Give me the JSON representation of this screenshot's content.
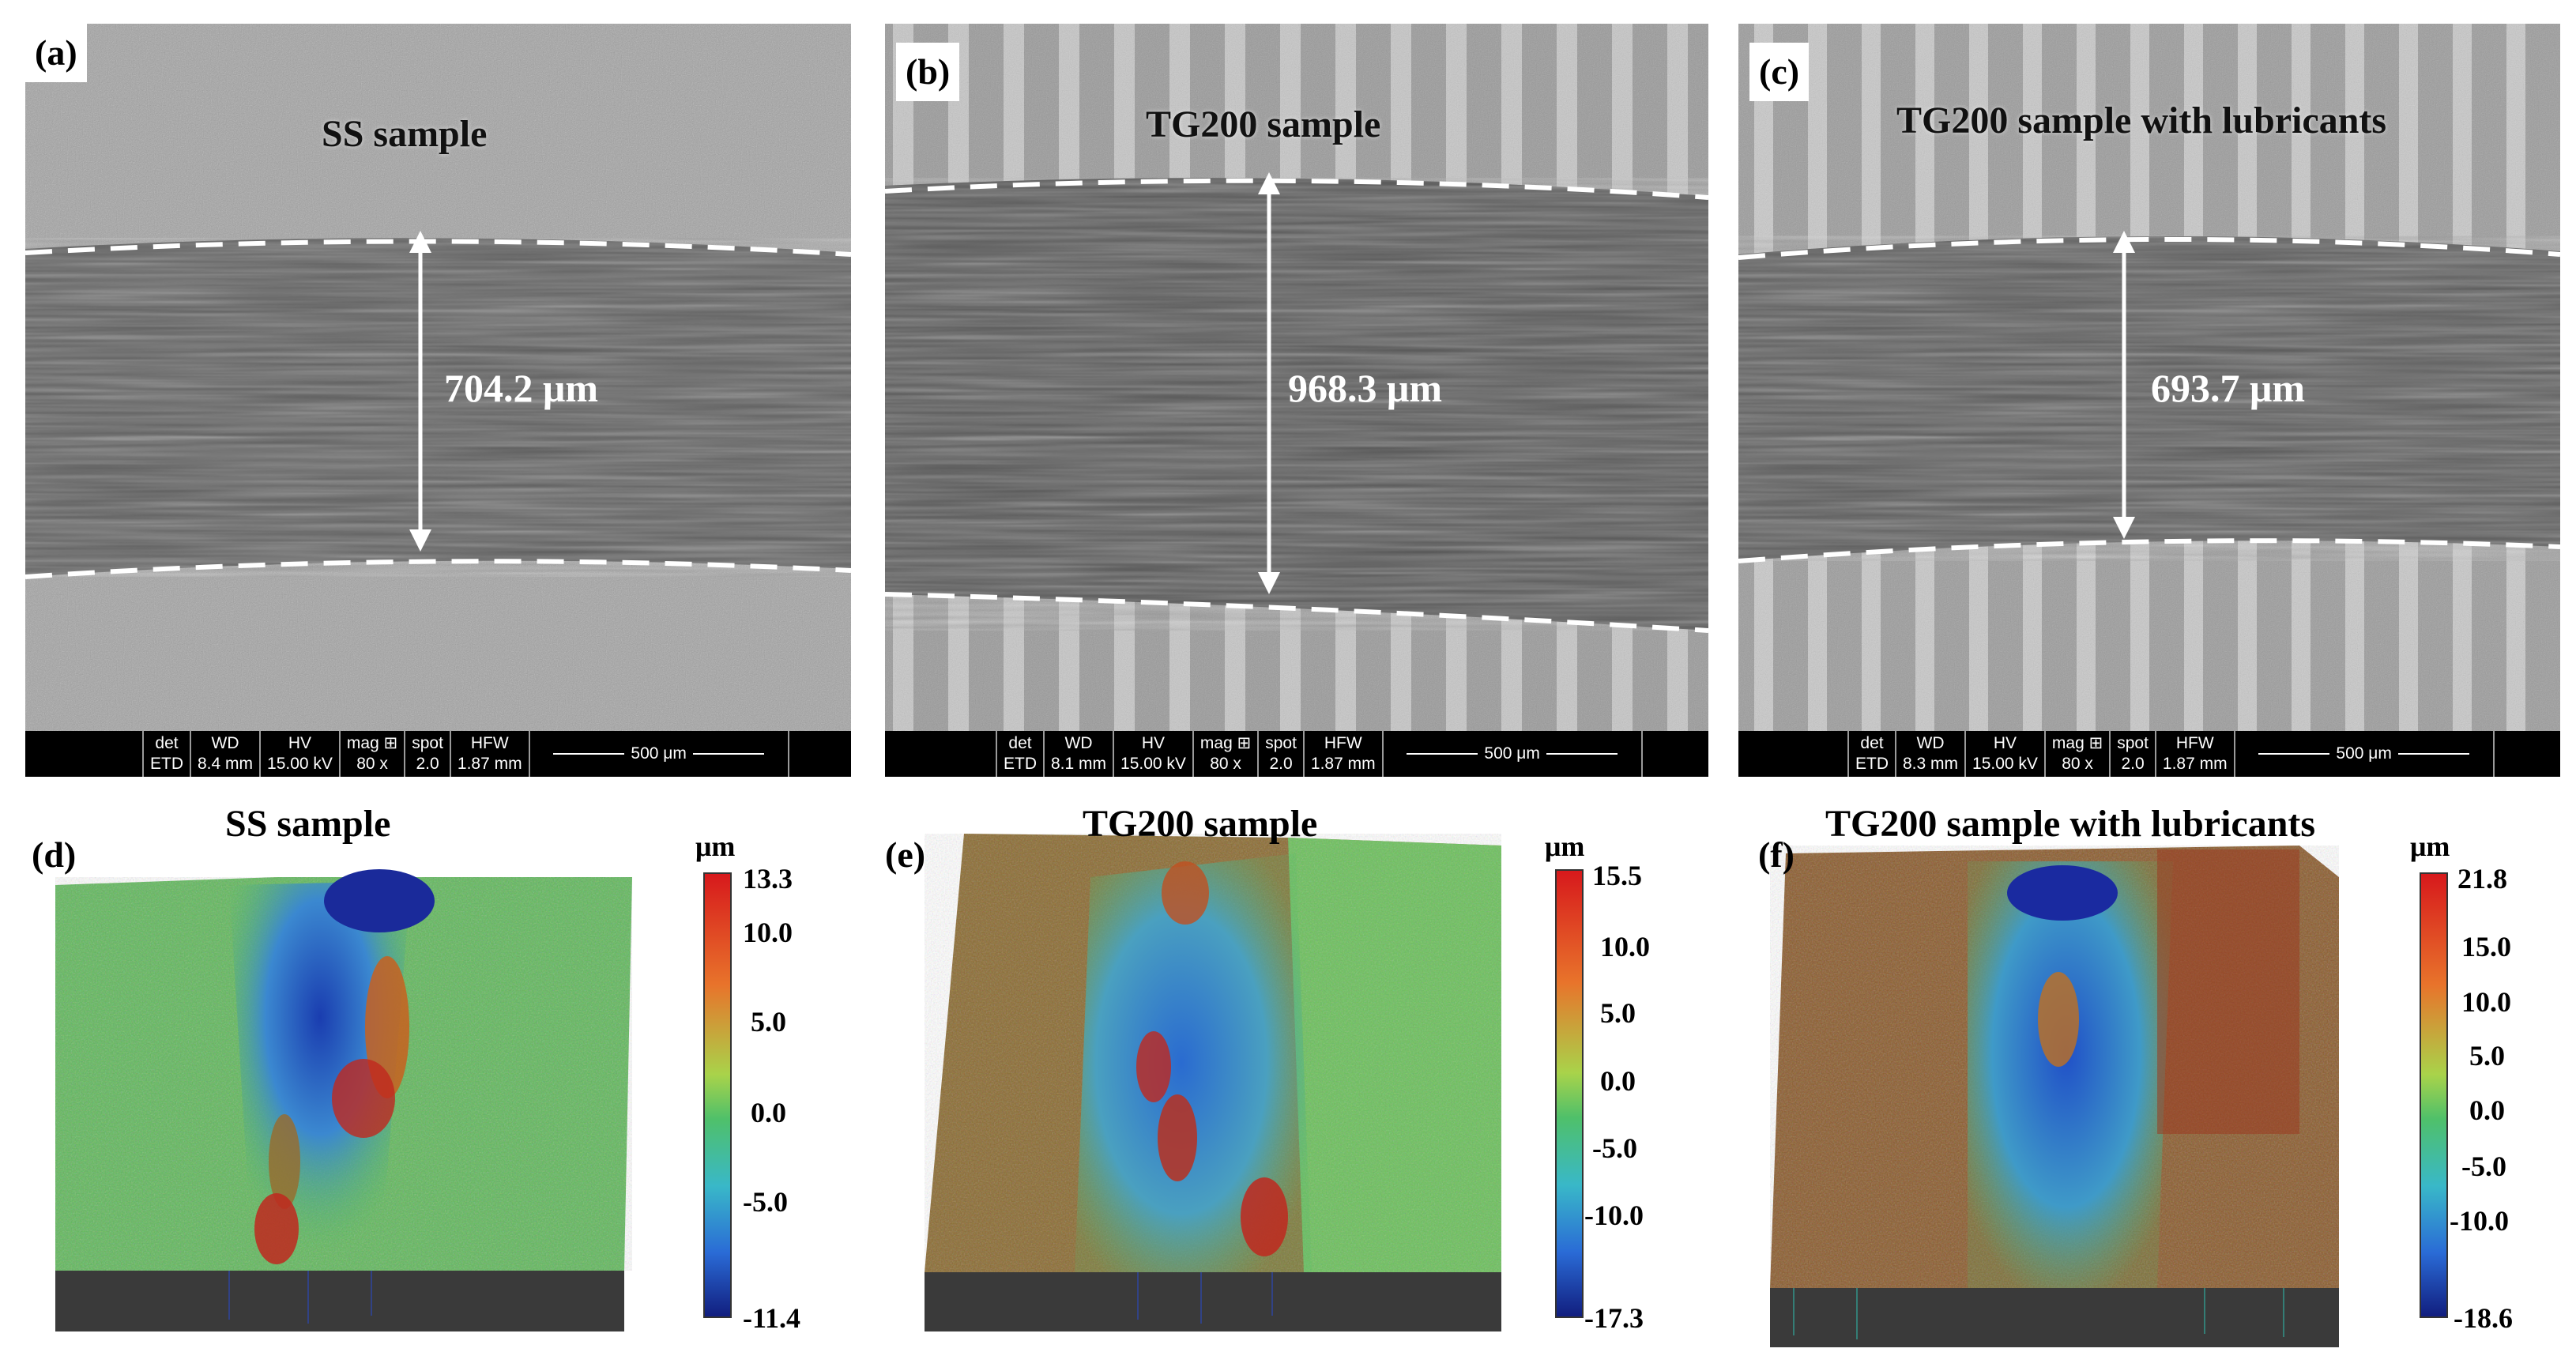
{
  "sem_panels": [
    {
      "letter": "(a)",
      "title": "SS sample",
      "measurement": "704.2 μm",
      "info": {
        "det": "ETD",
        "wd": "8.4 mm",
        "hv": "15.00 kV",
        "mag": "80 x",
        "spot": "2.0",
        "hfw": "1.87 mm",
        "scale": "500 μm"
      }
    },
    {
      "letter": "(b)",
      "title": "TG200 sample",
      "measurement": "968.3 μm",
      "info": {
        "det": "ETD",
        "wd": "8.1 mm",
        "hv": "15.00 kV",
        "mag": "80 x",
        "spot": "2.0",
        "hfw": "1.87 mm",
        "scale": "500 μm"
      }
    },
    {
      "letter": "(c)",
      "title": "TG200 sample with lubricants",
      "measurement": "693.7 μm",
      "info": {
        "det": "ETD",
        "wd": "8.3 mm",
        "hv": "15.00 kV",
        "mag": "80 x",
        "spot": "2.0",
        "hfw": "1.87 mm",
        "scale": "500 μm"
      }
    }
  ],
  "info_headers": {
    "det": "det",
    "wd": "WD",
    "hv": "HV",
    "mag": "mag ⊞",
    "spot": "spot",
    "hfw": "HFW"
  },
  "profile_panels": [
    {
      "letter": "(d)",
      "title": "SS sample",
      "unit": "μm",
      "max": "13.3",
      "min": "-11.4",
      "ticks": [
        "10.0",
        "5.0",
        "0.0",
        "-5.0"
      ]
    },
    {
      "letter": "(e)",
      "title": "TG200 sample",
      "unit": "μm",
      "max": "15.5",
      "min": "-17.3",
      "ticks": [
        "10.0",
        "5.0",
        "0.0",
        "-5.0",
        "-10.0"
      ]
    },
    {
      "letter": "(f)",
      "title": "TG200 sample with lubricants",
      "unit": "μm",
      "max": "21.8",
      "min": "-18.6",
      "ticks": [
        "15.0",
        "10.0",
        "5.0",
        "0.0",
        "-5.0",
        "-10.0"
      ]
    }
  ],
  "colors": {
    "colorbar_top": "#d7191c",
    "colorbar_mid": "#66cc44",
    "colorbar_bottom": "#1a237e",
    "surface_green": "#5fb85a",
    "surface_brown": "#8a5a2b",
    "wear_blue": "#2f64c8"
  }
}
